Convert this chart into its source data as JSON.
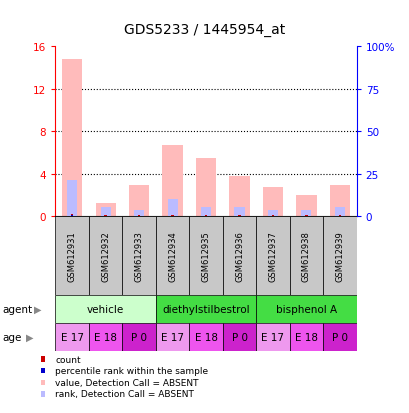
{
  "title": "GDS5233 / 1445954_at",
  "samples": [
    "GSM612931",
    "GSM612932",
    "GSM612933",
    "GSM612934",
    "GSM612935",
    "GSM612936",
    "GSM612937",
    "GSM612938",
    "GSM612939"
  ],
  "absent_value_bars": [
    14.8,
    1.2,
    2.9,
    6.7,
    5.5,
    3.8,
    2.7,
    2.0,
    2.9
  ],
  "absent_rank_bars": [
    21.0,
    5.0,
    3.5,
    10.0,
    5.0,
    5.0,
    3.5,
    3.5,
    5.0
  ],
  "count_values": [
    0.15,
    0.07,
    0.07,
    0.07,
    0.07,
    0.07,
    0.07,
    0.07,
    0.07
  ],
  "rank_values": [
    0.4,
    0.07,
    0.07,
    0.12,
    0.07,
    0.07,
    0.07,
    0.07,
    0.07
  ],
  "ylim_left": [
    0,
    16
  ],
  "ylim_right": [
    0,
    100
  ],
  "yticks_left": [
    0,
    4,
    8,
    12,
    16
  ],
  "yticks_right": [
    0,
    25,
    50,
    75,
    100
  ],
  "ytick_labels_left": [
    "0",
    "4",
    "8",
    "12",
    "16"
  ],
  "ytick_labels_right": [
    "0",
    "25",
    "50",
    "75",
    "100%"
  ],
  "agent_groups": [
    {
      "label": "vehicle",
      "cols": [
        0,
        1,
        2
      ],
      "color": "#ccffcc"
    },
    {
      "label": "diethylstilbestrol",
      "cols": [
        3,
        4,
        5
      ],
      "color": "#44dd44"
    },
    {
      "label": "bisphenol A",
      "cols": [
        6,
        7,
        8
      ],
      "color": "#44dd44"
    }
  ],
  "age_colors": [
    "#ee99ee",
    "#ee55ee",
    "#cc22cc",
    "#ee99ee",
    "#ee55ee",
    "#cc22cc",
    "#ee99ee",
    "#ee55ee",
    "#cc22cc"
  ],
  "age_labels": [
    "E 17",
    "E 18",
    "P 0",
    "E 17",
    "E 18",
    "P 0",
    "E 17",
    "E 18",
    "P 0"
  ],
  "bar_width": 0.6,
  "absent_value_color": "#ffbbbb",
  "absent_rank_color": "#bbbbff",
  "count_color": "#cc0000",
  "rank_color": "#0000cc",
  "sample_bg_color": "#c8c8c8",
  "legend_items": [
    {
      "color": "#cc0000",
      "label": "count"
    },
    {
      "color": "#0000cc",
      "label": "percentile rank within the sample"
    },
    {
      "color": "#ffbbbb",
      "label": "value, Detection Call = ABSENT"
    },
    {
      "color": "#bbbbff",
      "label": "rank, Detection Call = ABSENT"
    }
  ]
}
